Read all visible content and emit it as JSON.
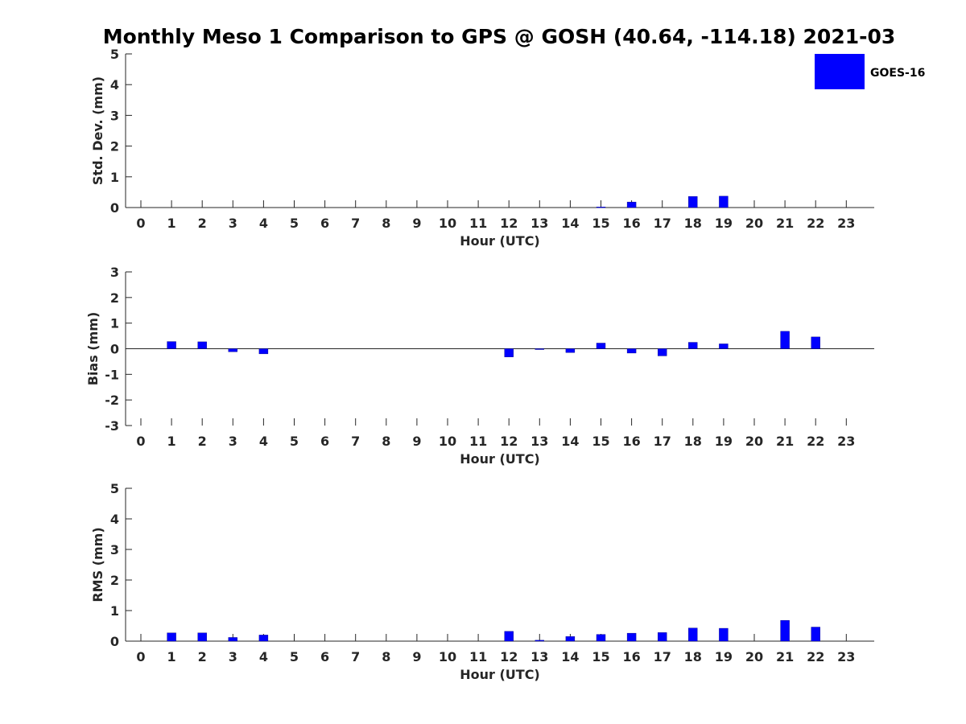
{
  "title": "Monthly Meso 1 Comparison to GPS @ GOSH (40.64, -114.18) 2021-03",
  "legend": {
    "label": "GOES-16",
    "color": "#0000ff",
    "placement": "top-right"
  },
  "colors": {
    "bar": "#0000ff",
    "axis": "#262626"
  },
  "chart_data": [
    {
      "type": "bar",
      "title": "Monthly Meso 1 Comparison to GPS @ GOSH (40.64, -114.18) 2021-03",
      "xlabel": "Hour (UTC)",
      "ylabel": "Std. Dev. (mm)",
      "categories": [
        "0",
        "1",
        "2",
        "3",
        "4",
        "5",
        "6",
        "7",
        "8",
        "9",
        "10",
        "11",
        "12",
        "13",
        "14",
        "15",
        "16",
        "17",
        "18",
        "19",
        "20",
        "21",
        "22",
        "23"
      ],
      "series": [
        {
          "name": "GOES-16",
          "values": [
            null,
            null,
            null,
            null,
            null,
            null,
            null,
            null,
            null,
            null,
            null,
            null,
            null,
            null,
            null,
            0.02,
            0.18,
            null,
            0.36,
            0.37,
            null,
            null,
            null,
            null
          ]
        }
      ],
      "yticks": [
        0,
        1,
        2,
        3,
        4,
        5
      ],
      "ylim": [
        0,
        5
      ],
      "grid": false
    },
    {
      "type": "bar",
      "xlabel": "Hour (UTC)",
      "ylabel": "Bias (mm)",
      "categories": [
        "0",
        "1",
        "2",
        "3",
        "4",
        "5",
        "6",
        "7",
        "8",
        "9",
        "10",
        "11",
        "12",
        "13",
        "14",
        "15",
        "16",
        "17",
        "18",
        "19",
        "20",
        "21",
        "22",
        "23"
      ],
      "series": [
        {
          "name": "GOES-16",
          "values": [
            null,
            0.28,
            0.27,
            -0.12,
            -0.2,
            null,
            null,
            null,
            null,
            null,
            null,
            null,
            -0.32,
            -0.03,
            -0.15,
            0.22,
            -0.17,
            -0.28,
            0.25,
            0.19,
            null,
            0.68,
            0.46,
            null
          ]
        }
      ],
      "yticks": [
        -3,
        -2,
        -1,
        0,
        1,
        2,
        3
      ],
      "ylim": [
        -3,
        3
      ],
      "grid": false
    },
    {
      "type": "bar",
      "xlabel": "Hour (UTC)",
      "ylabel": "RMS (mm)",
      "categories": [
        "0",
        "1",
        "2",
        "3",
        "4",
        "5",
        "6",
        "7",
        "8",
        "9",
        "10",
        "11",
        "12",
        "13",
        "14",
        "15",
        "16",
        "17",
        "18",
        "19",
        "20",
        "21",
        "22",
        "23"
      ],
      "series": [
        {
          "name": "GOES-16",
          "values": [
            null,
            0.27,
            0.27,
            0.12,
            0.2,
            null,
            null,
            null,
            null,
            null,
            null,
            null,
            0.32,
            0.03,
            0.15,
            0.22,
            0.26,
            0.28,
            0.43,
            0.42,
            null,
            0.68,
            0.46,
            null
          ]
        }
      ],
      "yticks": [
        0,
        1,
        2,
        3,
        4,
        5
      ],
      "ylim": [
        0,
        5
      ],
      "grid": false
    }
  ]
}
